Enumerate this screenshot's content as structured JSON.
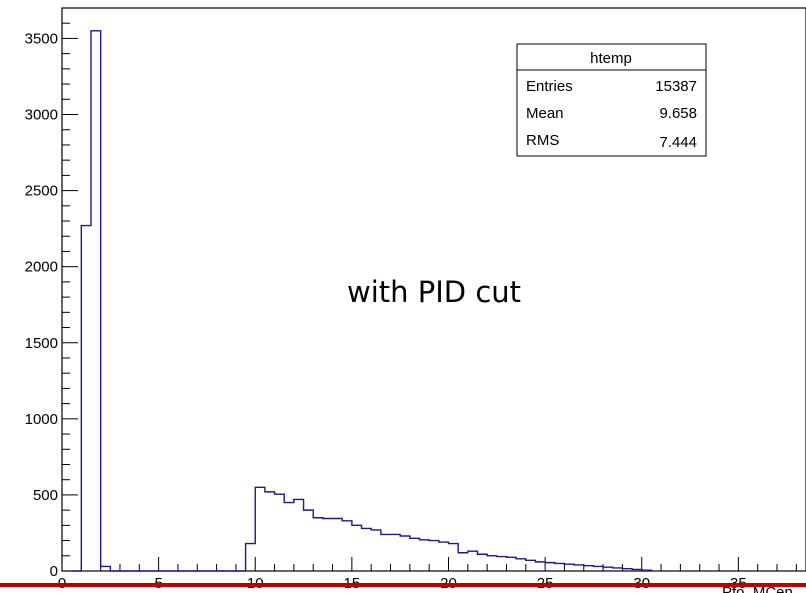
{
  "chart_data": {
    "type": "bar",
    "style": "step-histogram",
    "xlim": [
      0,
      38.5
    ],
    "ylim": [
      0,
      3700
    ],
    "x_ticks": [
      0,
      5,
      10,
      15,
      20,
      25,
      30,
      35
    ],
    "y_ticks": [
      0,
      500,
      1000,
      1500,
      2000,
      2500,
      3000,
      3500
    ],
    "x_tick_labels": [
      "0",
      "5",
      "10",
      "15",
      "20",
      "25",
      "30",
      "35"
    ],
    "y_tick_labels": [
      "0",
      "500",
      "1000",
      "1500",
      "2000",
      "2500",
      "3000",
      "3500"
    ],
    "bin_width": 0.5,
    "bins_x": [
      0.5,
      1.0,
      1.5,
      2.0,
      2.5,
      3.0,
      3.5,
      4.0,
      4.5,
      5.0,
      5.5,
      6.0,
      6.5,
      7.0,
      7.5,
      8.0,
      8.5,
      9.0,
      9.5,
      10.0,
      10.5,
      11.0,
      11.5,
      12.0,
      12.5,
      13.0,
      13.5,
      14.0,
      14.5,
      15.0,
      15.5,
      16.0,
      16.5,
      17.0,
      17.5,
      18.0,
      18.5,
      19.0,
      19.5,
      20.0,
      20.5,
      21.0,
      21.5,
      22.0,
      22.5,
      23.0,
      23.5,
      24.0,
      24.5,
      25.0,
      25.5,
      26.0,
      26.5,
      27.0,
      27.5,
      28.0,
      28.5,
      29.0,
      29.5,
      30.0
    ],
    "values": [
      0,
      2270,
      3550,
      30,
      0,
      0,
      0,
      0,
      0,
      0,
      0,
      0,
      0,
      0,
      0,
      0,
      0,
      0,
      180,
      550,
      520,
      505,
      450,
      470,
      400,
      350,
      345,
      345,
      330,
      300,
      280,
      270,
      240,
      240,
      230,
      215,
      205,
      200,
      190,
      180,
      120,
      130,
      110,
      100,
      95,
      90,
      80,
      70,
      60,
      55,
      50,
      45,
      40,
      35,
      30,
      25,
      20,
      15,
      10,
      5
    ],
    "stats": {
      "title": "htemp",
      "rows": [
        {
          "label": "Entries",
          "value": "15387"
        },
        {
          "label": "Mean",
          "value": "9.658"
        },
        {
          "label": "RMS",
          "value": "7.444"
        }
      ]
    },
    "annotation": "with PID cut",
    "xlabel": "Pfo_MCen",
    "line_color": "#1a1a8c",
    "footer_line_color": "#c00000"
  }
}
